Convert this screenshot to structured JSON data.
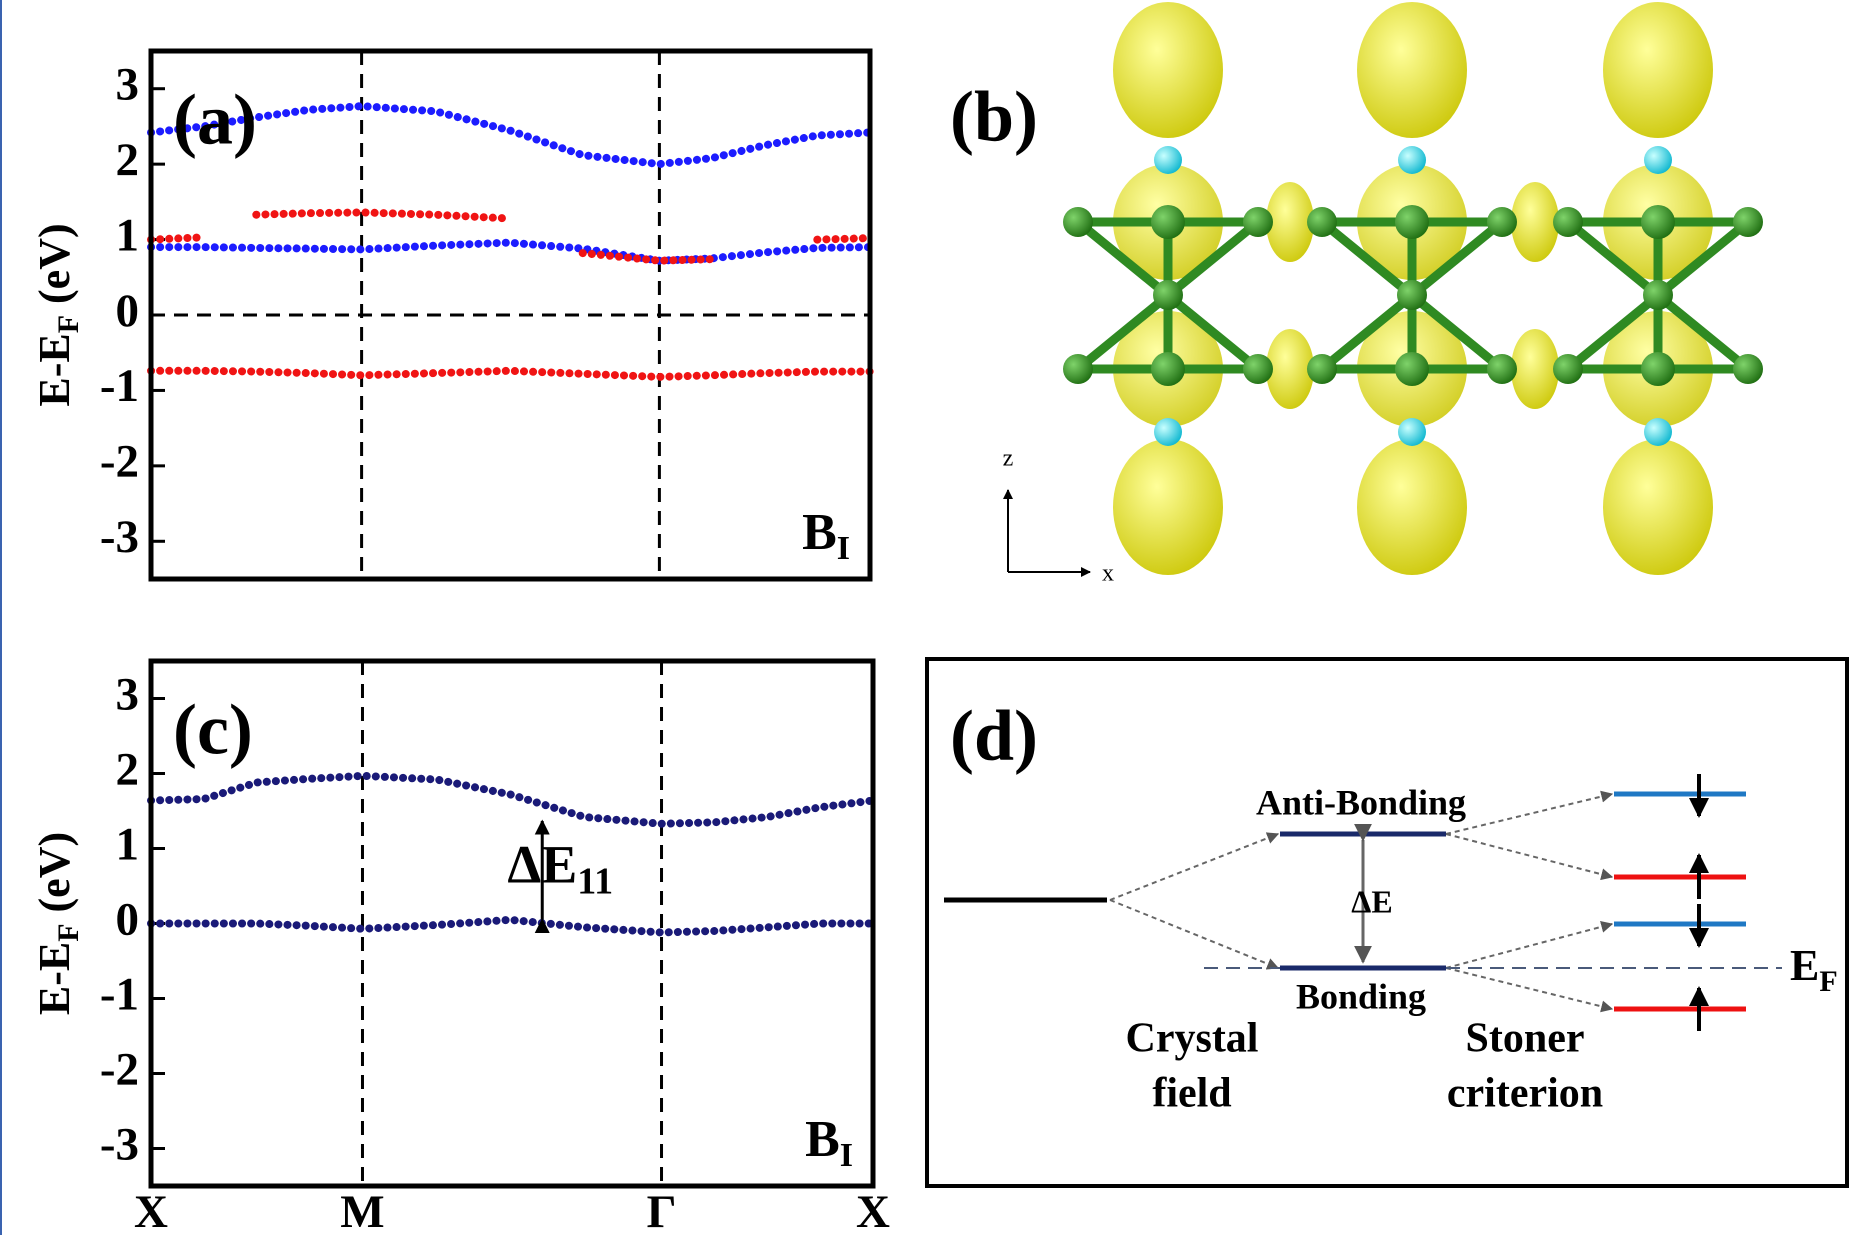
{
  "chart_data": [
    {
      "type": "line",
      "panel_label": "(a)",
      "ylabel": {
        "main": "E-E",
        "sub": "F",
        "tail": " (eV)"
      },
      "corner_label": {
        "main": "B",
        "sub": "I"
      },
      "x": [
        0,
        0.25,
        0.5,
        0.75,
        1,
        1.35,
        1.7,
        2.05,
        2.414,
        2.664,
        2.914,
        3.164,
        3.414
      ],
      "series": [
        {
          "color": "#1c1cff",
          "values": [
            2.42,
            2.5,
            2.62,
            2.72,
            2.77,
            2.7,
            2.45,
            2.12,
            2.0,
            2.08,
            2.25,
            2.38,
            2.42
          ]
        },
        {
          "color": "#1c1cff",
          "values": [
            0.9,
            0.9,
            0.89,
            0.88,
            0.87,
            0.92,
            0.96,
            0.88,
            0.72,
            0.75,
            0.83,
            0.89,
            0.9
          ]
        },
        {
          "color": "#f01414",
          "values": [
            -0.74,
            -0.74,
            -0.75,
            -0.77,
            -0.8,
            -0.77,
            -0.74,
            -0.78,
            -0.82,
            -0.8,
            -0.77,
            -0.75,
            -0.75
          ]
        },
        {
          "color": "#f01414",
          "values": [
            null,
            null,
            1.33,
            1.35,
            1.36,
            1.33,
            1.28,
            null,
            null,
            null,
            null,
            null,
            null
          ]
        },
        {
          "color": "#f01414",
          "values": [
            1.0,
            1.03,
            null,
            null,
            null,
            null,
            null,
            0.82,
            0.72,
            0.74,
            null,
            1.0,
            1.02
          ]
        }
      ],
      "xlim": [
        0,
        3.414
      ],
      "xticks": [
        0,
        1,
        2.414,
        3.414
      ],
      "ylim": [
        -3.5,
        3.5
      ],
      "yticks": [
        -3,
        -2,
        -1,
        0,
        1,
        2,
        3
      ],
      "hline": 0
    },
    {
      "type": "line",
      "panel_label": "(c)",
      "ylabel": {
        "main": "E-E",
        "sub": "F",
        "tail": " (eV)"
      },
      "corner_label": {
        "main": "B",
        "sub": "I"
      },
      "x": [
        0,
        0.25,
        0.5,
        0.75,
        1,
        1.35,
        1.7,
        2.05,
        2.414,
        2.664,
        2.914,
        3.164,
        3.414
      ],
      "series": [
        {
          "color": "#1a1a78",
          "values": [
            1.64,
            1.66,
            1.88,
            1.93,
            1.97,
            1.92,
            1.72,
            1.42,
            1.33,
            1.35,
            1.42,
            1.55,
            1.64
          ]
        },
        {
          "color": "#1a1a78",
          "values": [
            0.0,
            0.0,
            0.0,
            -0.03,
            -0.07,
            -0.02,
            0.05,
            -0.05,
            -0.12,
            -0.1,
            -0.05,
            0.0,
            0.0
          ]
        }
      ],
      "xlim": [
        0,
        3.414
      ],
      "xticks": [
        {
          "value": 0,
          "label": "X"
        },
        {
          "value": 1,
          "label": "M"
        },
        {
          "value": 2.414,
          "label": "Γ"
        },
        {
          "value": 3.414,
          "label": "X"
        }
      ],
      "ylim": [
        -3.5,
        3.5
      ],
      "yticks": [
        -3,
        -2,
        -1,
        0,
        1,
        2,
        3
      ],
      "annotation": {
        "text": "ΔE",
        "sub": "11",
        "x": 1.85,
        "y": [
          0,
          1.42
        ]
      }
    }
  ],
  "panel_b": {
    "label": "(b)",
    "axis_z": "z",
    "axis_x": "x"
  },
  "panel_d": {
    "label": "(d)",
    "anti_bonding": "Anti-Bonding",
    "bonding": "Bonding",
    "delta_e": "ΔE",
    "fermi": {
      "main": "E",
      "sub": "F"
    },
    "crystal_field": [
      "Crystal",
      "field"
    ],
    "stoner": [
      "Stoner",
      "criterion"
    ]
  }
}
